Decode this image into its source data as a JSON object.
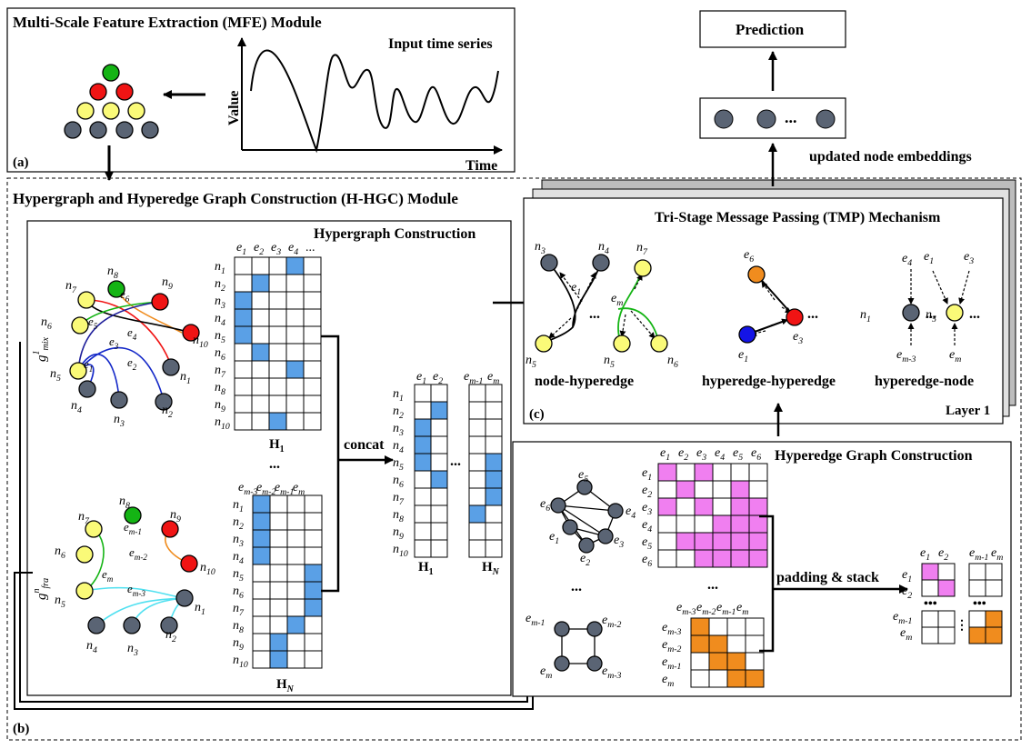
{
  "colors": {
    "blue": "#5aa0e6",
    "pink": "#f07ff0",
    "orange": "#f08c1e",
    "yellow": "#fafa78",
    "red": "#f01414",
    "green": "#14b414",
    "gray": "#5a6474",
    "cyan": "#50e0f0",
    "nodeblue": "#1414e6",
    "nodeorange": "#f08c1e"
  },
  "mfe": {
    "title": "Multi-Scale Feature Extraction (MFE) Module",
    "input_label": "Input time series",
    "ylabel": "Value",
    "xlabel": "Time",
    "tag": "(a)"
  },
  "hhgc": {
    "title": "Hypergraph and Hyperedge Graph Construction (H-HGC) Module",
    "tag": "(b)"
  },
  "hc": {
    "title": "Hypergraph Construction",
    "cols1": [
      "e",
      "e",
      "e",
      "e",
      "..."
    ],
    "H1": "H",
    "H1sub": "1",
    "HN": "H",
    "HNsub": "N",
    "dots": "...",
    "concat": "concat",
    "rows": [
      "n1",
      "n2",
      "n3",
      "n4",
      "n5",
      "n6",
      "n7",
      "n8",
      "n9",
      "n10"
    ],
    "g_mix": "g",
    "g_mix_sup": "1",
    "g_mix_sub": "mix",
    "g_fra": "g",
    "g_fra_sup": "n",
    "g_fra_sub": "fra",
    "colsN": [
      "e m-3",
      "e m-2",
      "e m-1",
      "e m"
    ]
  },
  "hgc": {
    "title": "Hyperedge Graph Construction",
    "padding": "padding & stack",
    "cols": [
      "e1",
      "e2",
      "e3",
      "e4",
      "e5",
      "e6"
    ],
    "colsM": [
      "e m-3",
      "e m-2",
      "e m-1",
      "e m"
    ]
  },
  "tmp": {
    "title": "Tri-Stage Message Passing (TMP) Mechanism",
    "nh": "node-hyperedge",
    "hh": "hyperedge-hyperedge",
    "hn": "hyperedge-node",
    "layer": "Layer 1",
    "tag": "(c)"
  },
  "pred": {
    "label": "Prediction",
    "emb": "updated node embeddings",
    "dots": "..."
  }
}
